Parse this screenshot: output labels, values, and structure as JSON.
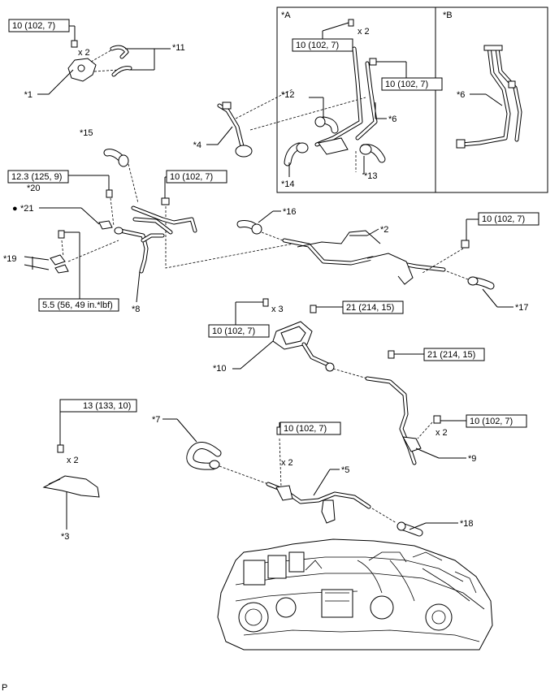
{
  "panels": {
    "a": "*A",
    "b": "*B"
  },
  "callouts": {
    "c1": "*1",
    "c2": "*2",
    "c3": "*3",
    "c4": "*4",
    "c5": "*5",
    "c6a": "*6",
    "c6b": "*6",
    "c7": "*7",
    "c8": "*8",
    "c9": "*9",
    "c10": "*10",
    "c11": "*11",
    "c12": "*12",
    "c13": "*13",
    "c14": "*14",
    "c15": "*15",
    "c16": "*16",
    "c17": "*17",
    "c18": "*18",
    "c19": "*19",
    "c20": "*20",
    "c21": "*21"
  },
  "torques": {
    "t1": "10 (102, 7)",
    "t2": "10 (102, 7)",
    "t3": "10 (102, 7)",
    "t4": "12.3 (125, 9)",
    "t5": "10 (102, 7)",
    "t6": "10 (102, 7)",
    "t7": "5.5 (56, 49 in.*lbf)",
    "t8": "10 (102, 7)",
    "t9": "21 (214, 15)",
    "t10": "21 (214, 15)",
    "t11": "10 (102, 7)",
    "t12": "13 (133, 10)",
    "t13": "10 (102, 7)"
  },
  "qty": {
    "q1": "x 2",
    "q2": "x 2",
    "q3": "x 3",
    "q4": "x 2",
    "q5": "x 2",
    "q6": "x 2"
  },
  "marks": {
    "dot": "●"
  },
  "footer": {
    "code": "P"
  }
}
